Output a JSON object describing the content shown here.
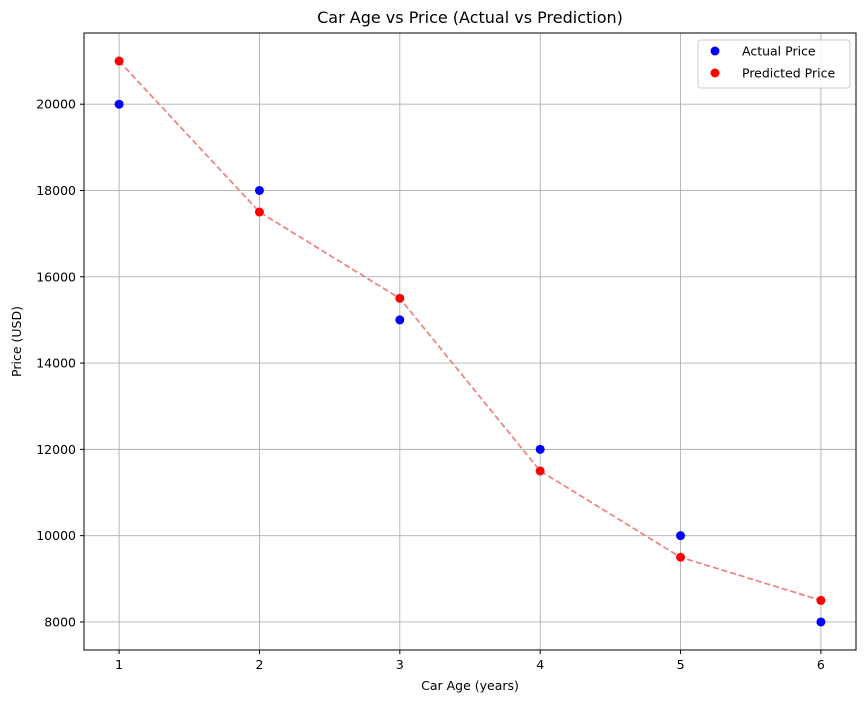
{
  "chart_data": {
    "type": "scatter",
    "title": "Car Age vs Price (Actual vs Prediction)",
    "xlabel": "Car Age (years)",
    "ylabel": "Price (USD)",
    "x": [
      1,
      2,
      3,
      4,
      5,
      6
    ],
    "xlim": [
      0.75,
      6.25
    ],
    "ylim": [
      7350,
      21650
    ],
    "xticks": [
      1,
      2,
      3,
      4,
      5,
      6
    ],
    "yticks": [
      8000,
      10000,
      12000,
      14000,
      16000,
      18000,
      20000
    ],
    "grid": true,
    "legend_position": "top-right",
    "series": [
      {
        "name": "Actual Price",
        "kind": "scatter",
        "color": "#0000ff",
        "values": [
          20000,
          18000,
          15000,
          12000,
          10000,
          8000
        ]
      },
      {
        "name": "Predicted Price",
        "kind": "scatter+dashed-line",
        "color": "#ff0000",
        "line_color": "#f08080",
        "values": [
          21000,
          17500,
          15500,
          11500,
          9500,
          8500
        ]
      }
    ]
  }
}
